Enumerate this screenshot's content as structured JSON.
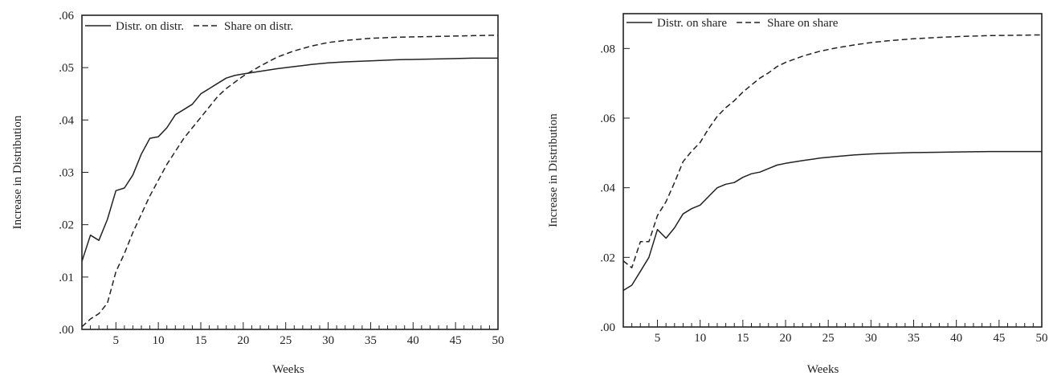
{
  "chart_data": [
    {
      "type": "line",
      "xlabel": "Weeks",
      "ylabel": "Increase in Distribution",
      "xlim": [
        1,
        50
      ],
      "ylim": [
        0,
        0.06
      ],
      "x_ticks": [
        5,
        10,
        15,
        20,
        25,
        30,
        35,
        40,
        45,
        50
      ],
      "x_tick_labels": [
        "5",
        "10",
        "15",
        "20",
        "25",
        "30",
        "35",
        "40",
        "45",
        "50"
      ],
      "y_ticks": [
        0,
        0.01,
        0.02,
        0.03,
        0.04,
        0.05,
        0.06
      ],
      "y_tick_labels": [
        ".00",
        ".01",
        ".02",
        ".03",
        ".04",
        ".05",
        ".06"
      ],
      "legend": "top-left",
      "grid": false,
      "x": [
        1,
        2,
        3,
        4,
        5,
        6,
        7,
        8,
        9,
        10,
        11,
        12,
        13,
        14,
        15,
        16,
        17,
        18,
        19,
        20,
        22,
        24,
        26,
        28,
        30,
        32,
        35,
        38,
        41,
        44,
        47,
        50
      ],
      "series": [
        {
          "name": "Distr. on distr.",
          "style": "solid",
          "values": [
            0.013,
            0.018,
            0.017,
            0.021,
            0.0265,
            0.027,
            0.0295,
            0.0335,
            0.0365,
            0.0368,
            0.0385,
            0.041,
            0.042,
            0.043,
            0.045,
            0.046,
            0.047,
            0.048,
            0.0485,
            0.0488,
            0.0493,
            0.0498,
            0.0502,
            0.0506,
            0.0509,
            0.0511,
            0.0513,
            0.0515,
            0.0516,
            0.0517,
            0.0518,
            0.0518
          ]
        },
        {
          "name": "Share on distr.",
          "style": "dashed",
          "values": [
            0.0005,
            0.002,
            0.003,
            0.005,
            0.011,
            0.0145,
            0.0185,
            0.022,
            0.0255,
            0.0285,
            0.0315,
            0.034,
            0.0365,
            0.0385,
            0.0405,
            0.0425,
            0.0445,
            0.046,
            0.0472,
            0.0484,
            0.0503,
            0.052,
            0.0532,
            0.0541,
            0.0548,
            0.0552,
            0.0556,
            0.0558,
            0.0559,
            0.056,
            0.0561,
            0.0562
          ]
        }
      ]
    },
    {
      "type": "line",
      "xlabel": "Weeks",
      "ylabel": "Increase in Distribution",
      "xlim": [
        1,
        50
      ],
      "ylim": [
        0,
        0.09
      ],
      "x_ticks": [
        5,
        10,
        15,
        20,
        25,
        30,
        35,
        40,
        45,
        50
      ],
      "x_tick_labels": [
        "5",
        "10",
        "15",
        "20",
        "25",
        "30",
        "35",
        "40",
        "45",
        "50"
      ],
      "y_ticks": [
        0,
        0.02,
        0.04,
        0.06,
        0.08
      ],
      "y_tick_labels": [
        ".00",
        ".02",
        ".04",
        ".06",
        ".08"
      ],
      "legend": "top-left",
      "grid": false,
      "x": [
        1,
        2,
        3,
        4,
        5,
        6,
        7,
        8,
        9,
        10,
        11,
        12,
        13,
        14,
        15,
        16,
        17,
        18,
        19,
        20,
        22,
        24,
        26,
        28,
        30,
        32,
        35,
        38,
        41,
        44,
        47,
        50
      ],
      "series": [
        {
          "name": "Distr. on share",
          "style": "solid",
          "values": [
            0.0105,
            0.012,
            0.016,
            0.02,
            0.028,
            0.0255,
            0.0285,
            0.0325,
            0.034,
            0.035,
            0.0375,
            0.04,
            0.041,
            0.0415,
            0.043,
            0.044,
            0.0445,
            0.0455,
            0.0465,
            0.047,
            0.0478,
            0.0485,
            0.049,
            0.0494,
            0.0497,
            0.0499,
            0.0501,
            0.0502,
            0.0503,
            0.0504,
            0.0504,
            0.0504
          ]
        },
        {
          "name": "Share on share",
          "style": "dashed",
          "values": [
            0.019,
            0.017,
            0.0245,
            0.0245,
            0.032,
            0.036,
            0.0415,
            0.0475,
            0.0505,
            0.053,
            0.057,
            0.0605,
            0.063,
            0.065,
            0.0675,
            0.0695,
            0.0715,
            0.073,
            0.0748,
            0.076,
            0.0778,
            0.0792,
            0.0802,
            0.081,
            0.0817,
            0.0822,
            0.0828,
            0.0832,
            0.0835,
            0.0837,
            0.0838,
            0.0839
          ]
        }
      ]
    }
  ]
}
